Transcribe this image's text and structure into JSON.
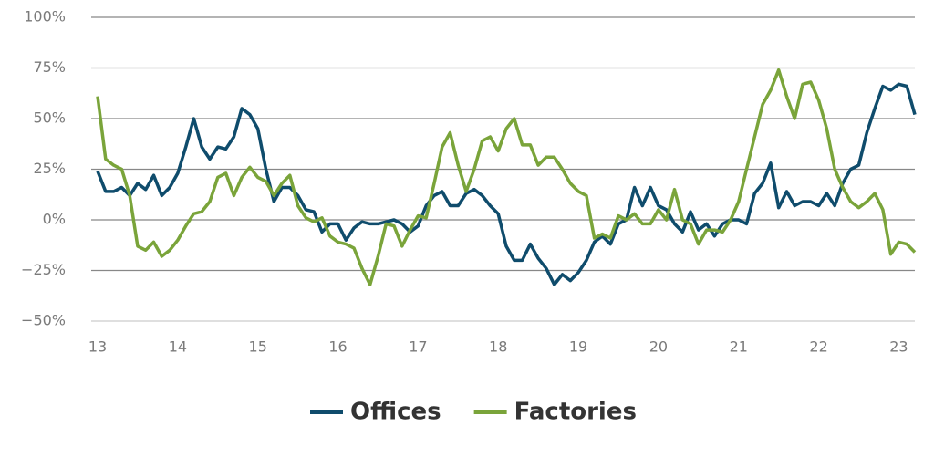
{
  "chart_data": {
    "type": "line",
    "x": [
      13.0,
      13.1,
      13.2,
      13.3,
      13.4,
      13.5,
      13.6,
      13.7,
      13.8,
      13.9,
      14.0,
      14.1,
      14.2,
      14.3,
      14.4,
      14.5,
      14.6,
      14.7,
      14.8,
      14.9,
      15.0,
      15.1,
      15.2,
      15.3,
      15.4,
      15.5,
      15.6,
      15.7,
      15.8,
      15.9,
      16.0,
      16.1,
      16.2,
      16.3,
      16.4,
      16.5,
      16.6,
      16.7,
      16.8,
      16.9,
      17.0,
      17.1,
      17.2,
      17.3,
      17.4,
      17.5,
      17.6,
      17.7,
      17.8,
      17.9,
      18.0,
      18.1,
      18.2,
      18.3,
      18.4,
      18.5,
      18.6,
      18.7,
      18.8,
      18.9,
      19.0,
      19.1,
      19.2,
      19.3,
      19.4,
      19.5,
      19.6,
      19.7,
      19.8,
      19.9,
      20.0,
      20.1,
      20.2,
      20.3,
      20.4,
      20.5,
      20.6,
      20.7,
      20.8,
      20.9,
      21.0,
      21.1,
      21.2,
      21.3,
      21.4,
      21.5,
      21.6,
      21.7,
      21.8,
      21.9,
      22.0,
      22.1,
      22.2,
      22.3,
      22.4,
      22.5,
      22.6,
      22.7,
      22.8,
      22.9,
      23.0,
      23.1,
      23.2
    ],
    "series": [
      {
        "name": "Offices",
        "color": "#0f4c6c",
        "values": [
          24,
          14,
          14,
          16,
          12,
          18,
          15,
          22,
          12,
          16,
          23,
          36,
          50,
          36,
          30,
          36,
          35,
          41,
          55,
          52,
          45,
          25,
          9,
          16,
          16,
          12,
          5,
          4,
          -6,
          -2,
          -2,
          -10,
          -4,
          -1,
          -2,
          -2,
          -1,
          0,
          -2,
          -6,
          -3,
          7,
          12,
          14,
          7,
          7,
          13,
          15,
          12,
          7,
          3,
          -13,
          -20,
          -20,
          -12,
          -19,
          -24,
          -32,
          -27,
          -30,
          -26,
          -20,
          -11,
          -8,
          -12,
          -2,
          0,
          16,
          7,
          16,
          7,
          5,
          -2,
          -6,
          4,
          -5,
          -2,
          -8,
          -2,
          0,
          0,
          -2,
          13,
          18,
          28,
          6,
          14,
          7,
          9,
          9,
          7,
          13,
          7,
          18,
          25,
          27,
          43,
          55,
          66,
          64,
          67,
          66,
          52
        ]
      },
      {
        "name": "Factories",
        "color": "#7aa43a",
        "values": [
          61,
          30,
          27,
          25,
          12,
          -13,
          -15,
          -11,
          -18,
          -15,
          -10,
          -3,
          3,
          4,
          9,
          21,
          23,
          12,
          21,
          26,
          21,
          19,
          12,
          18,
          22,
          7,
          1,
          -1,
          1,
          -8,
          -11,
          -12,
          -14,
          -24,
          -32,
          -18,
          -2,
          -3,
          -13,
          -5,
          2,
          1,
          18,
          36,
          43,
          27,
          14,
          25,
          39,
          41,
          34,
          45,
          50,
          37,
          37,
          27,
          31,
          31,
          25,
          18,
          14,
          12,
          -9,
          -7,
          -9,
          2,
          0,
          3,
          -2,
          -2,
          5,
          0,
          15,
          0,
          -2,
          -12,
          -5,
          -5,
          -6,
          0,
          9,
          25,
          41,
          57,
          64,
          74,
          61,
          50,
          67,
          68,
          59,
          45,
          25,
          16,
          9,
          6,
          9,
          13,
          5,
          -17,
          -11,
          -12,
          -16
        ]
      }
    ],
    "xlim": [
      12.92,
      23.2
    ],
    "xticks": [
      13,
      14,
      15,
      16,
      17,
      18,
      19,
      20,
      21,
      22,
      23
    ],
    "ylim": [
      -50,
      100
    ],
    "yticks": [
      {
        "value": -50,
        "label": "−50%"
      },
      {
        "value": -25,
        "label": "−25%"
      },
      {
        "value": 0,
        "label": "0%"
      },
      {
        "value": 25,
        "label": "25%"
      },
      {
        "value": 50,
        "label": "50%"
      },
      {
        "value": 75,
        "label": "75%"
      },
      {
        "value": 100,
        "label": "100%"
      }
    ],
    "grid": true,
    "legend": "bottom"
  }
}
